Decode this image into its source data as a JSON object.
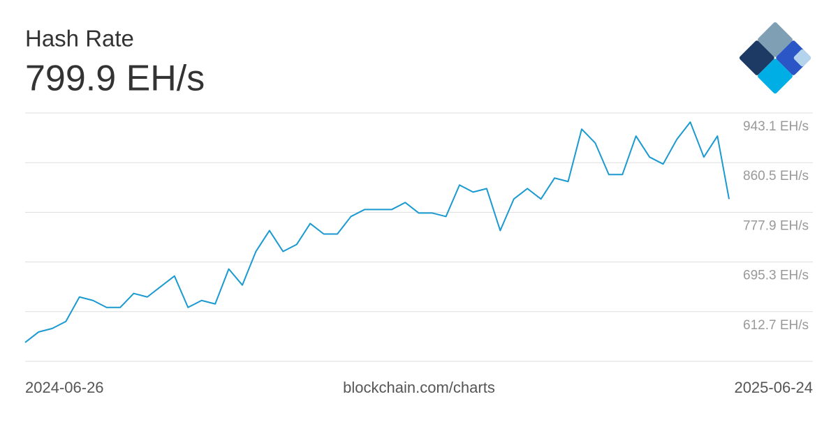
{
  "chart_data": {
    "type": "line",
    "title": "Hash Rate",
    "subtitle": "799.9 EH/s",
    "source": "blockchain.com/charts",
    "color": "#1a9ad0",
    "grid": true,
    "xlim": [
      "2024-06-26",
      "2025-06-24"
    ],
    "ylim": [
      530.1,
      943.1
    ],
    "yticks": [
      {
        "value": 943.1,
        "label": "943.1 EH/s"
      },
      {
        "value": 860.5,
        "label": "860.5 EH/s"
      },
      {
        "value": 777.9,
        "label": "777.9 EH/s"
      },
      {
        "value": 695.3,
        "label": "695.3 EH/s"
      },
      {
        "value": 612.7,
        "label": "612.7 EH/s"
      }
    ],
    "x": [
      "2024-06-26",
      "2024-07-03",
      "2024-07-10",
      "2024-07-17",
      "2024-07-24",
      "2024-07-31",
      "2024-08-07",
      "2024-08-14",
      "2024-08-21",
      "2024-08-28",
      "2024-09-04",
      "2024-09-11",
      "2024-09-18",
      "2024-09-25",
      "2024-10-02",
      "2024-10-09",
      "2024-10-16",
      "2024-10-23",
      "2024-10-30",
      "2024-11-06",
      "2024-11-13",
      "2024-11-20",
      "2024-11-27",
      "2024-12-04",
      "2024-12-11",
      "2024-12-18",
      "2024-12-25",
      "2025-01-01",
      "2025-01-08",
      "2025-01-15",
      "2025-01-22",
      "2025-01-29",
      "2025-02-05",
      "2025-02-12",
      "2025-02-19",
      "2025-02-26",
      "2025-03-05",
      "2025-03-12",
      "2025-03-19",
      "2025-03-26",
      "2025-04-02",
      "2025-04-09",
      "2025-04-16",
      "2025-04-23",
      "2025-04-30",
      "2025-05-07",
      "2025-05-14",
      "2025-05-21",
      "2025-05-28",
      "2025-06-04",
      "2025-06-11",
      "2025-06-18",
      "2025-06-24"
    ],
    "values": [
      561.5,
      579.0,
      584.8,
      596.4,
      637.1,
      631.3,
      619.7,
      619.7,
      643.0,
      637.1,
      654.6,
      672.0,
      619.7,
      631.3,
      625.5,
      683.7,
      656.9,
      712.8,
      747.6,
      712.8,
      724.4,
      759.3,
      741.8,
      741.8,
      770.9,
      782.5,
      782.5,
      782.5,
      794.2,
      776.7,
      776.7,
      770.9,
      823.3,
      811.6,
      817.4,
      747.6,
      800.0,
      817.4,
      800.0,
      834.9,
      829.1,
      916.3,
      893.1,
      840.7,
      840.7,
      904.7,
      869.8,
      858.2,
      898.9,
      928.0,
      869.8,
      904.7,
      799.9
    ]
  }
}
